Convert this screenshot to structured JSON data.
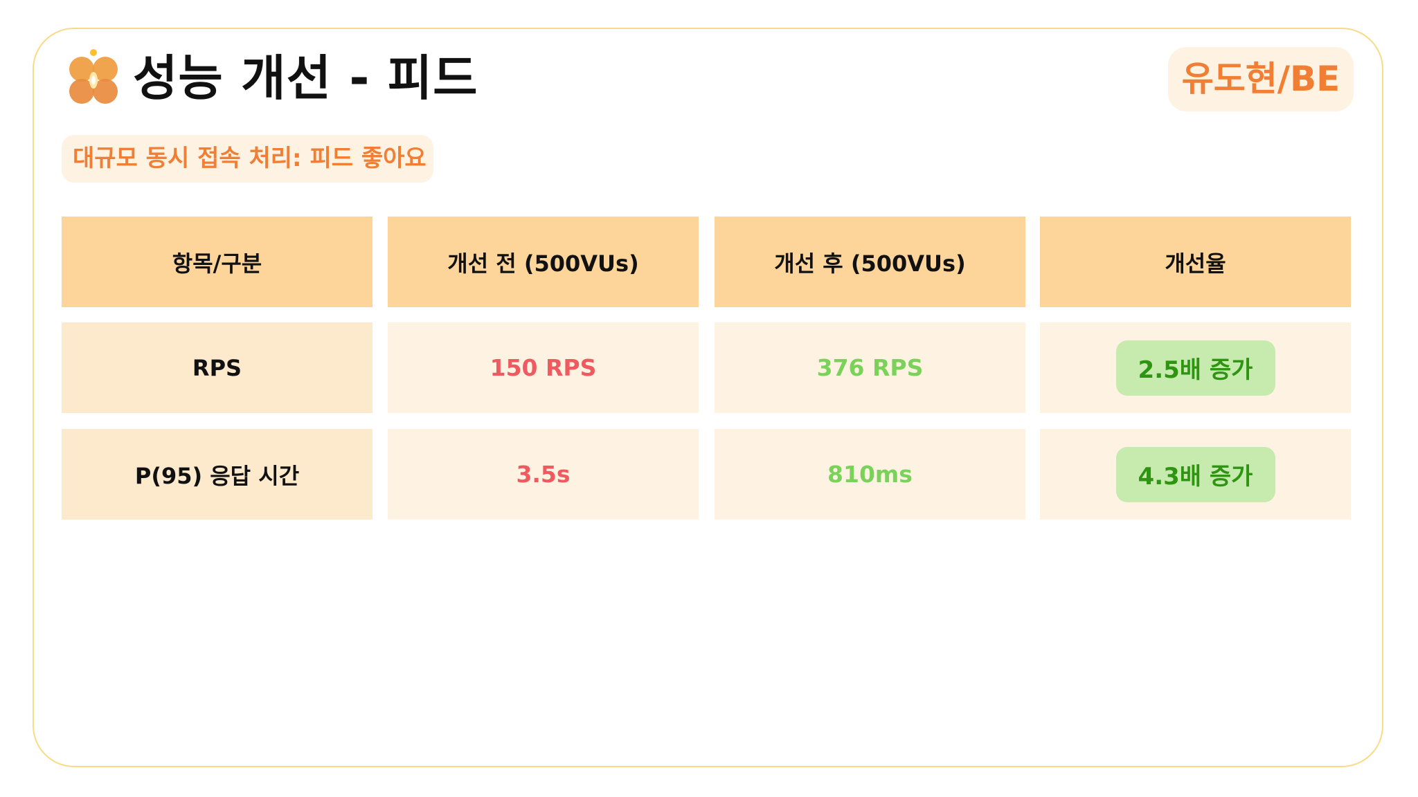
{
  "header": {
    "logo_icon": "orange-clover-logo",
    "title": "성능 개선 - 피드",
    "subtitle": "대규모 동시 접속 처리: 피드 좋아요",
    "author_badge": "유도현/BE"
  },
  "colors": {
    "accent": "#F07F35",
    "border": "#F9DA87",
    "header_bg": "#FDD59B",
    "cell_bg": "#FEF3E2",
    "before_text": "#EE5A5F",
    "after_text": "#7BD25A",
    "improvement_bg": "#C7EAAE",
    "improvement_text": "#2E9412"
  },
  "table": {
    "columns": [
      "항목/구분",
      "개선 전 (500VUs)",
      "개선 후 (500VUs)",
      "개선율"
    ],
    "rows": [
      {
        "metric": "RPS",
        "before": "150 RPS",
        "after": "376 RPS",
        "improvement": "2.5배 증가"
      },
      {
        "metric": "P(95) 응답 시간",
        "before": "3.5s",
        "after": "810ms",
        "improvement": "4.3배 증가"
      }
    ]
  }
}
